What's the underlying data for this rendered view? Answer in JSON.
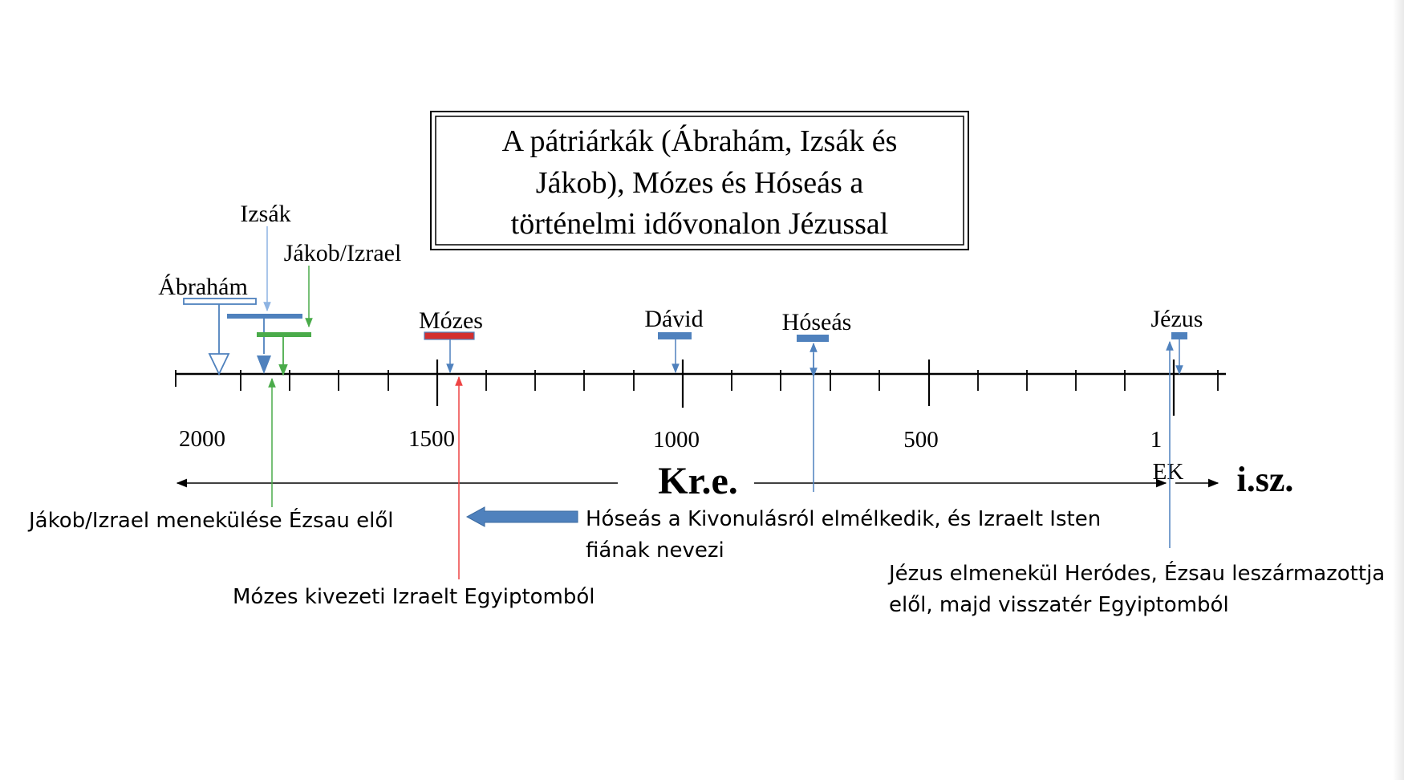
{
  "title": {
    "lines": [
      "A pátriárkák (Ábrahám, Izsák és",
      "Jákob), Mózes és Hóseás a",
      "történelmi idővonalon Jézussal"
    ]
  },
  "figures": {
    "abraham": "Ábrahám",
    "izsak": "Izsák",
    "jakob": "Jákob/Izrael",
    "mozes": "Mózes",
    "david": "Dávid",
    "hoseas": "Hóseás",
    "jezus": "Jézus"
  },
  "axis": {
    "tick_labels": [
      "2000",
      "1500",
      "1000",
      "500",
      "1"
    ],
    "ek_label": "EK",
    "bc_label": "Kr.e.",
    "ad_label": "i.sz."
  },
  "annotations": {
    "jakob_flight": "Jákob/Izrael menekülése Ézsau elől",
    "exodus": "Mózes kivezeti Izraelt Egyiptomból",
    "hoseas_line1": "Hóseás a Kivonulásról elmélkedik, és Izraelt Isten",
    "hoseas_line2": "fiának nevezi",
    "jesus_line1": "Jézus elmenekül Heródes, Ézsau leszármazottja",
    "jesus_line2": "elől, majd visszatér Egyiptomból"
  },
  "colors": {
    "blue_bar": "#4f81bd",
    "light_blue": "#8db3e2",
    "green": "#4aab4a",
    "red": "#d32f2f",
    "red_line": "#ee4444",
    "black": "#000000"
  }
}
